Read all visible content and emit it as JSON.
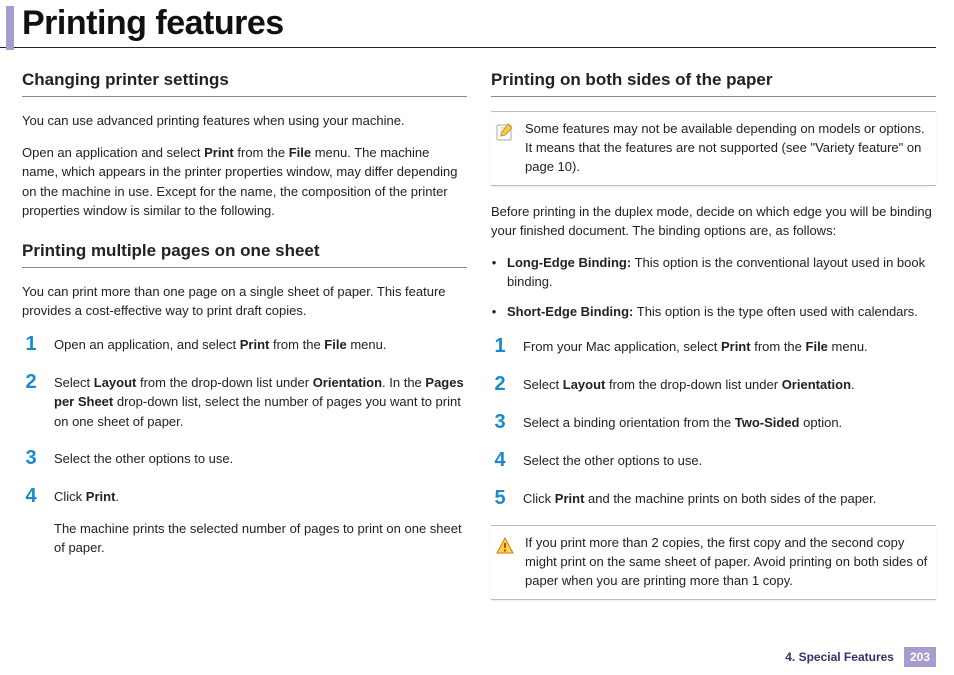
{
  "colors": {
    "accent_bar": "#a89bd0",
    "title_rule": "#222222",
    "section_rule": "#888888",
    "step_number": "#1a8ac8",
    "footer_chapter": "#3a2f6b",
    "footer_page_bg": "#a89bd0",
    "footer_page_text": "#ffffff",
    "callout_border": "#bbbbbb",
    "body_text": "#222222"
  },
  "page_title": "Printing features",
  "left": {
    "section1": {
      "title": "Changing printer settings",
      "p1": "You can use advanced printing features when using your machine.",
      "p2_pre": "Open an application and select ",
      "p2_bold1": "Print",
      "p2_mid": " from the ",
      "p2_bold2": "File",
      "p2_post": " menu. The machine name, which appears in the printer properties window, may differ depending on the machine in use. Except for the name, the composition of the printer properties window is similar to the following."
    },
    "section2": {
      "title": "Printing multiple pages on one sheet",
      "intro": "You can print more than one page on a single sheet of paper. This feature provides a cost-effective way to print draft copies.",
      "steps": [
        {
          "num": "1",
          "segments": [
            {
              "t": "Open an application, and select "
            },
            {
              "t": "Print",
              "b": true
            },
            {
              "t": " from the "
            },
            {
              "t": "File",
              "b": true
            },
            {
              "t": " menu."
            }
          ]
        },
        {
          "num": "2",
          "segments": [
            {
              "t": "Select "
            },
            {
              "t": "Layout",
              "b": true
            },
            {
              "t": " from the drop-down list under "
            },
            {
              "t": "Orientation",
              "b": true
            },
            {
              "t": ". In the "
            },
            {
              "t": "Pages per Sheet",
              "b": true
            },
            {
              "t": " drop-down list, select the number of pages you want to print on one sheet of paper."
            }
          ]
        },
        {
          "num": "3",
          "segments": [
            {
              "t": "Select the other options to use."
            }
          ]
        },
        {
          "num": "4",
          "segments": [
            {
              "t": "Click "
            },
            {
              "t": "Print",
              "b": true
            },
            {
              "t": "."
            }
          ],
          "extra": "The machine prints the selected number of pages to print on one sheet of paper."
        }
      ]
    }
  },
  "right": {
    "section1": {
      "title": "Printing on both sides of the paper",
      "note": "Some features may not be available depending on models or options. It means that the features are not supported (see \"Variety feature\" on page 10).",
      "intro": "Before printing in the duplex mode, decide on which edge you will be binding your finished document. The binding options are, as follows:",
      "bullets": [
        {
          "segments": [
            {
              "t": "Long-Edge Binding:",
              "b": true
            },
            {
              "t": " This option is the conventional layout used in book binding."
            }
          ]
        },
        {
          "segments": [
            {
              "t": "Short-Edge Binding:",
              "b": true
            },
            {
              "t": " This option is the type often used with calendars."
            }
          ]
        }
      ],
      "steps": [
        {
          "num": "1",
          "segments": [
            {
              "t": "From your Mac application, select "
            },
            {
              "t": "Print",
              "b": true
            },
            {
              "t": " from the "
            },
            {
              "t": "File",
              "b": true
            },
            {
              "t": " menu."
            }
          ]
        },
        {
          "num": "2",
          "segments": [
            {
              "t": "Select "
            },
            {
              "t": "Layout",
              "b": true
            },
            {
              "t": " from the drop-down list under "
            },
            {
              "t": "Orientation",
              "b": true
            },
            {
              "t": "."
            }
          ]
        },
        {
          "num": "3",
          "segments": [
            {
              "t": "Select a binding orientation from the "
            },
            {
              "t": "Two-Sided",
              "b": true
            },
            {
              "t": " option."
            }
          ]
        },
        {
          "num": "4",
          "segments": [
            {
              "t": "Select the other options to use."
            }
          ]
        },
        {
          "num": "5",
          "segments": [
            {
              "t": "Click "
            },
            {
              "t": "Print",
              "b": true
            },
            {
              "t": " and the machine prints on both sides of the paper."
            }
          ]
        }
      ],
      "warning": "If you print more than 2 copies, the first copy and the second copy might print on the same sheet of paper. Avoid printing on both sides of paper when you are printing more than 1 copy."
    }
  },
  "footer": {
    "chapter": "4.  Special Features",
    "page": "203"
  }
}
